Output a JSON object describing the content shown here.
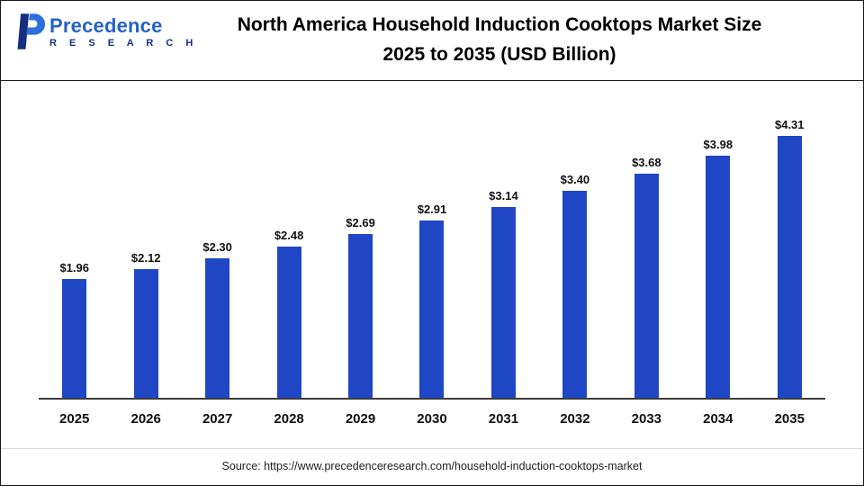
{
  "logo": {
    "name": "Precedence",
    "subname": "R E S E A R C H",
    "mark_dark": "#16307f",
    "mark_light": "#2e6fe0"
  },
  "header": {
    "title_line1": "North America Household Induction Cooktops Market Size",
    "title_line2": "2025 to 2035 (USD Billion)"
  },
  "chart_data": {
    "type": "bar",
    "title": "North America Household Induction Cooktops Market Size 2025 to 2035 (USD Billion)",
    "categories": [
      "2025",
      "2026",
      "2027",
      "2028",
      "2029",
      "2030",
      "2031",
      "2032",
      "2033",
      "2034",
      "2035"
    ],
    "values": [
      1.96,
      2.12,
      2.3,
      2.48,
      2.69,
      2.91,
      3.14,
      3.4,
      3.68,
      3.98,
      4.31
    ],
    "value_labels": [
      "$1.96",
      "$2.12",
      "$2.30",
      "$2.48",
      "$2.69",
      "$2.91",
      "$3.14",
      "$3.40",
      "$3.68",
      "$3.98",
      "$4.31"
    ],
    "xlabel": "",
    "ylabel": "",
    "ylim": [
      0,
      5
    ],
    "bar_color": "#1f47c5",
    "grid": false,
    "legend": false
  },
  "footer": {
    "source": "Source: https://www.precedenceresearch.com/household-induction-cooktops-market"
  }
}
